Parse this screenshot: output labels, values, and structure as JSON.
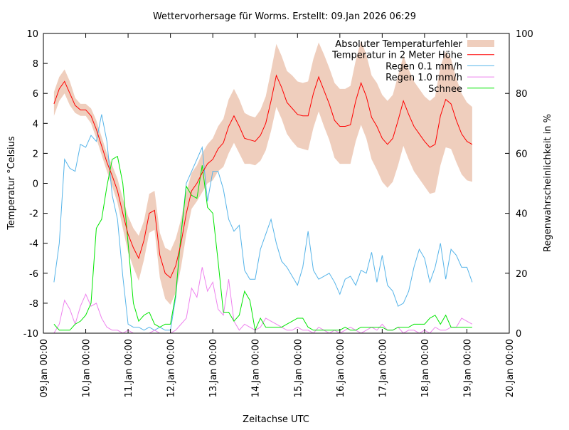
{
  "chart_data": {
    "type": "line",
    "title": "Wettervorhersage für Worms. Erstellt: 09.Jan 2026 06:29",
    "xlabel": "Zeitachse UTC",
    "ylabel": "Temperatur °Celsius",
    "y2label": "Regenwahrscheinlichkeit in %",
    "xlim": [
      "2026-01-09T00:00",
      "2026-01-20T00:00"
    ],
    "ylim": [
      -10,
      10
    ],
    "y2lim": [
      0,
      100
    ],
    "yticks": [
      "-10",
      "-8",
      "-6",
      "-4",
      "-2",
      "0",
      "2",
      "4",
      "6",
      "8",
      "10"
    ],
    "y2ticks": [
      "0",
      "20",
      "40",
      "60",
      "80",
      "100"
    ],
    "xticks": [
      "09.Jan 00:00",
      "10.Jan 00:00",
      "11.Jan 00:00",
      "12.Jan 00:00",
      "13.Jan 00:00",
      "14.Jan 00:00",
      "15.Jan 00:00",
      "16.Jan 00:00",
      "17.Jan 00:00",
      "18.Jan 00:00",
      "19.Jan 00:00",
      "20.Jan 00:00"
    ],
    "grid": false,
    "legend_position": "top-right",
    "x": [
      "2026-01-09T06:00",
      "2026-01-09T09:00",
      "2026-01-09T12:00",
      "2026-01-09T15:00",
      "2026-01-09T18:00",
      "2026-01-09T21:00",
      "2026-01-10T00:00",
      "2026-01-10T03:00",
      "2026-01-10T06:00",
      "2026-01-10T09:00",
      "2026-01-10T12:00",
      "2026-01-10T15:00",
      "2026-01-10T18:00",
      "2026-01-10T21:00",
      "2026-01-11T00:00",
      "2026-01-11T03:00",
      "2026-01-11T06:00",
      "2026-01-11T09:00",
      "2026-01-11T12:00",
      "2026-01-11T15:00",
      "2026-01-11T18:00",
      "2026-01-11T21:00",
      "2026-01-12T00:00",
      "2026-01-12T03:00",
      "2026-01-12T06:00",
      "2026-01-12T09:00",
      "2026-01-12T12:00",
      "2026-01-12T15:00",
      "2026-01-12T18:00",
      "2026-01-12T21:00",
      "2026-01-13T00:00",
      "2026-01-13T03:00",
      "2026-01-13T06:00",
      "2026-01-13T09:00",
      "2026-01-13T12:00",
      "2026-01-13T15:00",
      "2026-01-13T18:00",
      "2026-01-13T21:00",
      "2026-01-14T00:00",
      "2026-01-14T03:00",
      "2026-01-14T06:00",
      "2026-01-14T09:00",
      "2026-01-14T12:00",
      "2026-01-14T15:00",
      "2026-01-14T18:00",
      "2026-01-14T21:00",
      "2026-01-15T00:00",
      "2026-01-15T03:00",
      "2026-01-15T06:00",
      "2026-01-15T09:00",
      "2026-01-15T12:00",
      "2026-01-15T15:00",
      "2026-01-15T18:00",
      "2026-01-15T21:00",
      "2026-01-16T00:00",
      "2026-01-16T03:00",
      "2026-01-16T06:00",
      "2026-01-16T09:00",
      "2026-01-16T12:00",
      "2026-01-16T15:00",
      "2026-01-16T18:00",
      "2026-01-16T21:00",
      "2026-01-17T00:00",
      "2026-01-17T03:00",
      "2026-01-17T06:00",
      "2026-01-17T09:00",
      "2026-01-17T12:00",
      "2026-01-17T15:00",
      "2026-01-17T18:00",
      "2026-01-17T21:00",
      "2026-01-18T00:00",
      "2026-01-18T03:00",
      "2026-01-18T06:00",
      "2026-01-18T09:00",
      "2026-01-18T12:00",
      "2026-01-18T15:00",
      "2026-01-18T18:00",
      "2026-01-18T21:00",
      "2026-01-19T00:00",
      "2026-01-19T03:00"
    ],
    "series": [
      {
        "name": "Absoluter Temperaturfehler",
        "kind": "band",
        "axis": "y",
        "color": "#efcebd",
        "values": [
          0.8,
          0.8,
          0.8,
          0.8,
          0.5,
          0.4,
          0.4,
          0.5,
          0.6,
          0.6,
          0.6,
          0.7,
          0.8,
          1.0,
          1.2,
          1.3,
          1.5,
          1.3,
          1.3,
          1.3,
          1.5,
          1.7,
          1.8,
          1.8,
          1.6,
          1.4,
          1.2,
          1.2,
          1.3,
          1.3,
          1.4,
          1.5,
          1.6,
          1.8,
          1.8,
          1.8,
          1.7,
          1.6,
          1.6,
          1.7,
          1.8,
          2.0,
          2.1,
          2.1,
          2.1,
          2.2,
          2.2,
          2.2,
          2.3,
          2.3,
          2.3,
          2.4,
          2.4,
          2.5,
          2.5,
          2.5,
          2.6,
          2.7,
          2.8,
          2.8,
          2.8,
          2.9,
          2.9,
          2.9,
          2.9,
          3.0,
          3.0,
          3.0,
          3.0,
          3.0,
          3.0,
          3.1,
          3.2,
          3.3,
          3.2,
          3.0,
          2.8,
          2.7,
          2.6,
          2.5
        ]
      },
      {
        "name": "Temperatur in 2 Meter Höhe",
        "kind": "line",
        "axis": "y",
        "color": "#ff0000",
        "values": [
          5.3,
          6.3,
          6.8,
          6.0,
          5.2,
          4.9,
          4.9,
          4.5,
          3.6,
          2.5,
          1.4,
          0.5,
          -0.5,
          -2.0,
          -3.4,
          -4.3,
          -5.0,
          -3.8,
          -2.0,
          -1.8,
          -4.8,
          -6.0,
          -6.3,
          -5.5,
          -4.0,
          -2.0,
          -0.5,
          0.0,
          0.7,
          1.3,
          1.6,
          2.3,
          2.7,
          3.8,
          4.5,
          3.8,
          3.0,
          2.9,
          2.8,
          3.2,
          4.0,
          5.5,
          7.2,
          6.4,
          5.4,
          5.0,
          4.6,
          4.5,
          4.5,
          6.0,
          7.1,
          6.2,
          5.3,
          4.2,
          3.8,
          3.8,
          3.9,
          5.5,
          6.7,
          5.8,
          4.4,
          3.8,
          3.0,
          2.6,
          3.0,
          4.2,
          5.5,
          4.6,
          3.8,
          3.3,
          2.8,
          2.4,
          2.6,
          4.5,
          5.6,
          5.3,
          4.2,
          3.3,
          2.8,
          2.6
        ]
      },
      {
        "name": "Regen 0.1 mm/h",
        "kind": "line",
        "axis": "y2",
        "color": "#56b4e9",
        "values": [
          17,
          30,
          58,
          55,
          54,
          63,
          62,
          66,
          64,
          73,
          64,
          46,
          38,
          19,
          3,
          2,
          2,
          1,
          2,
          1,
          2,
          1,
          1,
          12,
          33,
          50,
          54,
          58,
          62,
          44,
          54,
          54,
          48,
          38,
          34,
          36,
          21,
          18,
          18,
          28,
          33,
          38,
          30,
          24,
          22,
          19,
          16,
          22,
          34,
          21,
          18,
          19,
          20,
          17,
          13,
          18,
          19,
          16,
          21,
          20,
          27,
          17,
          26,
          16,
          14,
          9,
          10,
          14,
          22,
          28,
          25,
          17,
          22,
          30,
          18,
          28,
          26,
          22,
          22,
          17
        ]
      },
      {
        "name": "Regen 1.0 mm/h",
        "kind": "line",
        "axis": "y2",
        "color": "#ee82ee",
        "values": [
          0,
          3,
          11,
          8,
          3,
          9,
          13,
          9,
          10,
          5,
          2,
          1,
          1,
          0,
          1,
          0,
          0,
          0,
          0,
          1,
          0,
          0,
          0,
          1,
          3,
          5,
          15,
          12,
          22,
          14,
          17,
          8,
          6,
          18,
          4,
          1,
          3,
          2,
          1,
          2,
          5,
          4,
          3,
          2,
          1,
          1,
          2,
          1,
          1,
          0,
          2,
          1,
          0,
          1,
          0,
          1,
          2,
          1,
          0,
          1,
          2,
          1,
          3,
          1,
          1,
          2,
          0,
          1,
          1,
          0,
          1,
          0,
          2,
          1,
          1,
          2,
          2,
          5,
          4,
          3
        ]
      },
      {
        "name": "Schnee",
        "kind": "line",
        "axis": "y2",
        "color": "#00e600",
        "values": [
          3,
          1,
          1,
          1,
          3,
          4,
          6,
          10,
          35,
          38,
          49,
          58,
          59,
          50,
          30,
          10,
          4,
          6,
          7,
          3,
          2,
          3,
          3,
          13,
          33,
          49,
          46,
          45,
          56,
          42,
          40,
          24,
          7,
          7,
          4,
          6,
          14,
          11,
          1,
          5,
          2,
          2,
          2,
          2,
          3,
          4,
          5,
          5,
          2,
          1,
          1,
          1,
          1,
          1,
          1,
          2,
          1,
          1,
          2,
          2,
          2,
          2,
          2,
          1,
          1,
          2,
          2,
          2,
          3,
          3,
          3,
          5,
          6,
          3,
          6,
          2,
          2,
          2,
          2,
          2
        ]
      }
    ]
  }
}
